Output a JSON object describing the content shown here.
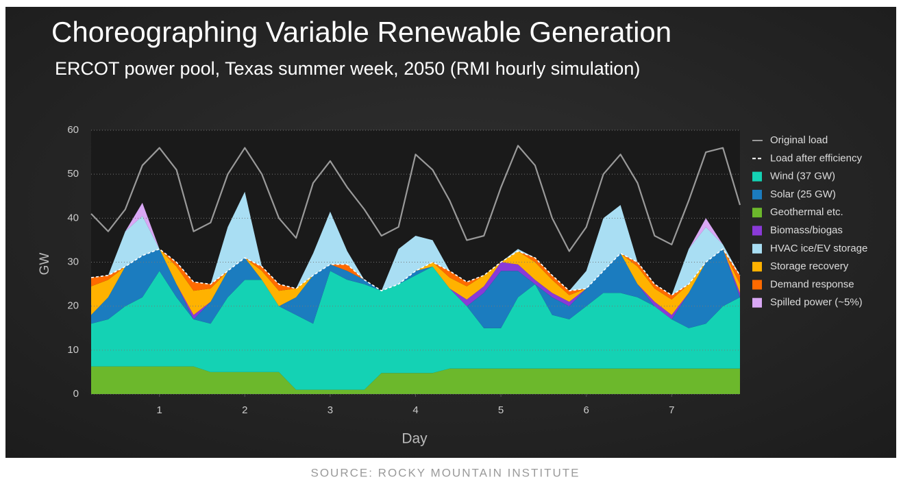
{
  "chart_data": {
    "type": "stacked-area",
    "title": "Choreographing Variable Renewable Generation",
    "subtitle": "ERCOT power pool, Texas summer week, 2050 (RMI hourly simulation)",
    "xlabel": "Day",
    "ylabel": "GW",
    "source": "SOURCE: ROCKY MOUNTAIN INSTITUTE",
    "xlim": [
      0.2,
      7.8
    ],
    "xticks": [
      1,
      2,
      3,
      4,
      5,
      6,
      7
    ],
    "ylim": [
      0,
      60
    ],
    "yticks": [
      0,
      10,
      20,
      30,
      40,
      50,
      60
    ],
    "grid": true,
    "legend": "right",
    "x": [
      0.2,
      0.4,
      0.6,
      0.8,
      1,
      1.2,
      1.4,
      1.6,
      1.8,
      2,
      2.2,
      2.4,
      2.6,
      2.8,
      3,
      3.2,
      3.4,
      3.6,
      3.8,
      4,
      4.2,
      4.4,
      4.6,
      4.8,
      5,
      5.2,
      5.4,
      5.6,
      5.8,
      6,
      6.2,
      6.4,
      6.6,
      6.8,
      7,
      7.2,
      7.4,
      7.6,
      7.8
    ],
    "series": [
      {
        "name": "Original load",
        "kind": "line",
        "dashed": false,
        "color": "#9a9a9a",
        "values": [
          41,
          37,
          42,
          52,
          56,
          51,
          37,
          39,
          50,
          56,
          50,
          40,
          35.5,
          48,
          53,
          47,
          42,
          36,
          38,
          54.5,
          51,
          44,
          35,
          36,
          47,
          56.5,
          52,
          40,
          32.5,
          38,
          50,
          54.5,
          48,
          36,
          34,
          44,
          55,
          56,
          43
        ]
      },
      {
        "name": "Load after efficiency",
        "kind": "line",
        "dashed": true,
        "color": "#ffffff",
        "values": [
          26.5,
          27,
          29,
          31.5,
          33,
          30,
          25.5,
          25,
          28,
          31,
          29,
          25,
          24,
          27,
          29.5,
          29.5,
          26,
          23.5,
          25,
          28,
          30,
          28,
          25.5,
          27,
          30,
          32.5,
          31,
          27,
          23.5,
          24,
          28,
          32,
          30,
          25,
          22.5,
          25,
          30,
          33,
          27
        ]
      },
      {
        "name": "Wind (37 GW)",
        "kind": "area",
        "color": "#14d2b4",
        "values": [
          9.7,
          10.7,
          13.7,
          15.7,
          21.7,
          15.7,
          10.7,
          11,
          17,
          21,
          21,
          15,
          17,
          15,
          27,
          25,
          24,
          18.7,
          20.2,
          22.2,
          24.2,
          18.2,
          14.2,
          9.2,
          9.2,
          16.2,
          19.2,
          12.2,
          11.2,
          14.2,
          17.2,
          17.2,
          16.2,
          14.2,
          11.2,
          9.2,
          10.2,
          14.2,
          16.2
        ]
      },
      {
        "name": "Solar (25 GW)",
        "kind": "area",
        "color": "#1b7cbf",
        "values": [
          2,
          5,
          9,
          9.5,
          5,
          3,
          0,
          5,
          6,
          5,
          0,
          0,
          4,
          11,
          1.5,
          2,
          1,
          0,
          0,
          1,
          0,
          0,
          0,
          8,
          13,
          6,
          0,
          4,
          3,
          4,
          5,
          9,
          3,
          0,
          0,
          8,
          14,
          13,
          0
        ]
      },
      {
        "name": "Geothermal etc.",
        "kind": "area",
        "color": "#6cb82c",
        "values": [
          6.3,
          6.3,
          6.3,
          6.3,
          6.3,
          6.3,
          6.3,
          5,
          5,
          5,
          5,
          5,
          1,
          1,
          1,
          1,
          1,
          4.8,
          4.8,
          4.8,
          4.8,
          5.8,
          5.8,
          5.8,
          5.8,
          5.8,
          5.8,
          5.8,
          5.8,
          5.8,
          5.8,
          5.8,
          5.8,
          5.8,
          5.8,
          5.8,
          5.8,
          5.8,
          5.8
        ]
      },
      {
        "name": "Biomass/biogas",
        "kind": "area",
        "color": "#8a3ad8",
        "values": [
          0,
          0,
          0,
          0,
          0,
          0,
          1,
          0,
          0,
          0,
          0,
          0,
          0,
          0,
          0,
          0,
          0,
          0,
          0,
          0,
          0,
          0,
          1.5,
          1.5,
          2,
          1.5,
          1,
          1,
          1,
          0,
          0,
          0,
          0,
          1,
          1,
          0,
          0,
          0,
          1
        ]
      },
      {
        "name": "HVAC ice/EV storage",
        "kind": "area",
        "color": "#a9def3",
        "values": [
          0,
          0,
          8,
          9,
          0,
          0,
          0,
          0,
          10,
          15,
          0,
          0,
          0,
          5,
          12,
          3,
          0,
          0,
          8,
          8,
          5,
          0,
          0,
          0,
          0,
          0.5,
          0,
          0,
          0,
          4,
          12,
          11,
          0,
          0,
          0,
          8,
          8,
          1,
          0
        ]
      },
      {
        "name": "Storage recovery",
        "kind": "area",
        "color": "#ffb200",
        "values": [
          6.5,
          4,
          0,
          0,
          0,
          4,
          5.5,
          3,
          0,
          0,
          2,
          3.5,
          2,
          0,
          0,
          0,
          0,
          0,
          0,
          0,
          1,
          2.5,
          3,
          2.5,
          0,
          3,
          4,
          3,
          1.5,
          0,
          0,
          0,
          4,
          3,
          3.5,
          2,
          0,
          0,
          2
        ]
      },
      {
        "name": "Demand response",
        "kind": "area",
        "color": "#ff6a00",
        "values": [
          2,
          1,
          0,
          0,
          0,
          1,
          2,
          1,
          0,
          0,
          1,
          1.5,
          0,
          0,
          0,
          1.5,
          0,
          0,
          0,
          0,
          0,
          1.5,
          1,
          0,
          0,
          0,
          1,
          1,
          1,
          0,
          0,
          0,
          1,
          1,
          1,
          0,
          0,
          0,
          2
        ]
      },
      {
        "name": "Spilled power (~5%)",
        "kind": "area",
        "color": "#d9a8f5",
        "values": [
          0,
          0,
          0,
          3,
          0,
          0,
          0,
          0,
          0,
          0,
          0,
          0,
          0,
          0,
          0,
          0,
          0,
          0,
          0,
          0,
          0,
          0,
          0,
          0,
          0,
          0,
          0,
          0,
          0,
          0,
          0,
          0,
          0,
          0,
          0,
          0,
          2,
          0,
          0
        ]
      }
    ]
  }
}
